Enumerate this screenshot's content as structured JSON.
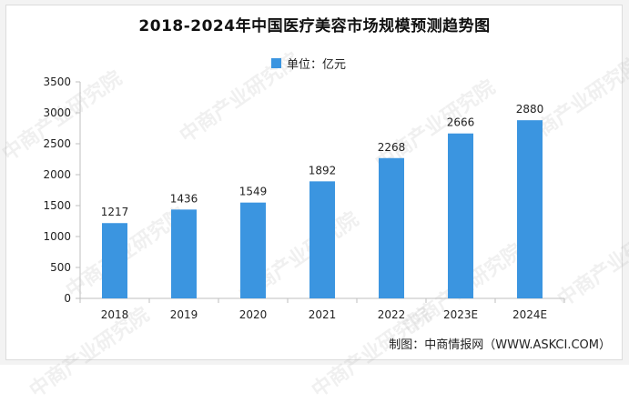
{
  "colors": {
    "bar": "#3b95e0",
    "axis": "#bfbfbf",
    "text": "#222222",
    "background": "#ffffff"
  },
  "watermark": "中商产业研究院",
  "footer": "制图：中商情报网（WWW.ASKCI.COM）",
  "chart_data": {
    "type": "bar",
    "title": "2018-2024年中国医疗美容市场规模预测趋势图",
    "xlabel": "",
    "ylabel": "",
    "categories": [
      "2018",
      "2019",
      "2020",
      "2021",
      "2022",
      "2023E",
      "2024E"
    ],
    "series": [
      {
        "name": "单位：亿元",
        "values": [
          1217,
          1436,
          1549,
          1892,
          2268,
          2666,
          2880
        ]
      }
    ],
    "ylim": [
      0,
      3500
    ],
    "yticks": [
      0,
      500,
      1000,
      1500,
      2000,
      2500,
      3000,
      3500
    ],
    "legend_position": "top-center",
    "grid": false,
    "data_labels": true
  }
}
